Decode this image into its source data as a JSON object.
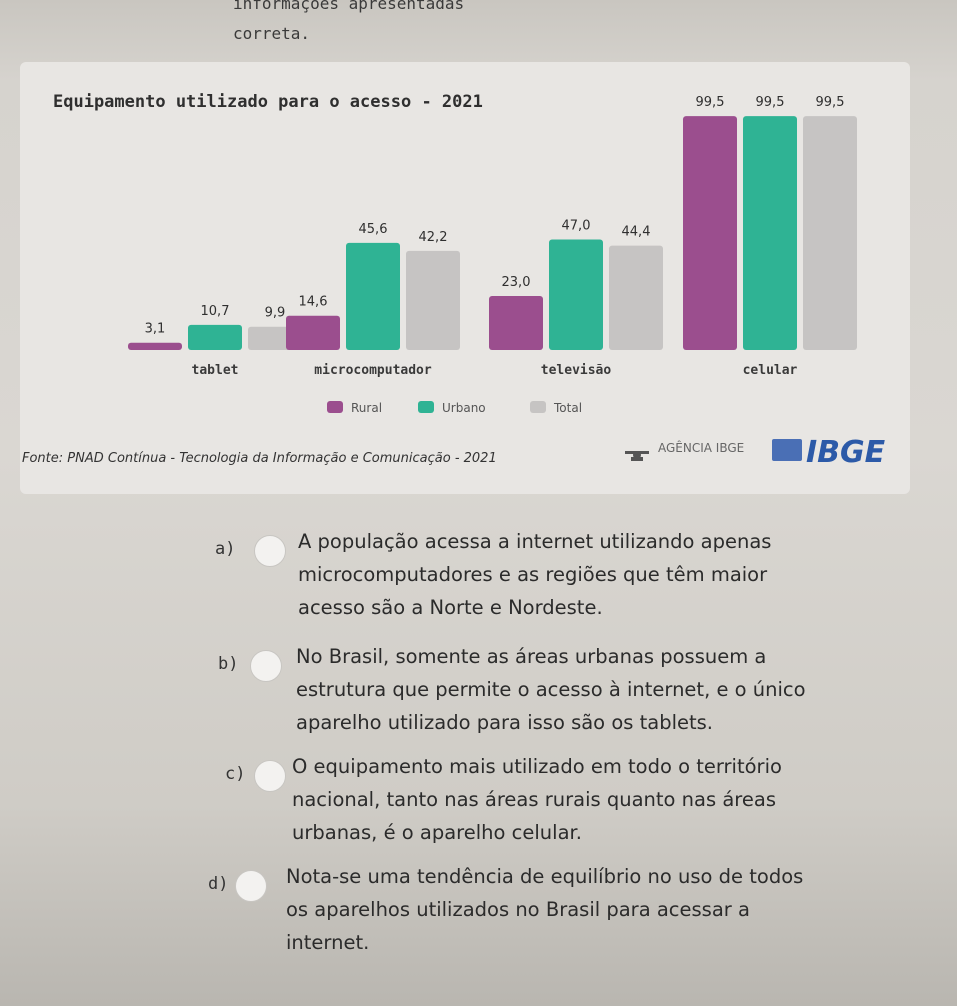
{
  "page": {
    "top_line_1": "informações apresentadas",
    "top_line_2": "correta."
  },
  "chart_data": {
    "type": "bar",
    "title": "Equipamento utilizado para o acesso - 2021",
    "categories": [
      "tablet",
      "microcomputador",
      "televisão",
      "celular"
    ],
    "series": [
      {
        "name": "Rural",
        "values": [
          3.1,
          14.6,
          23.0,
          99.5
        ],
        "labels": [
          "3,1",
          "14,6",
          "23,0",
          "99,5"
        ],
        "color": "#9b4e8e"
      },
      {
        "name": "Urbano",
        "values": [
          10.7,
          45.6,
          47.0,
          99.5
        ],
        "labels": [
          "10,7",
          "45,6",
          "47,0",
          "99,5"
        ],
        "color": "#2fb394"
      },
      {
        "name": "Total",
        "values": [
          9.9,
          42.2,
          44.4,
          99.5
        ],
        "labels": [
          "9,9",
          "42,2",
          "44,4",
          "99,5"
        ],
        "color": "#c6c4c3"
      }
    ],
    "legend_position": "bottom-center",
    "grid": false,
    "source": "Fonte: PNAD Contínua - Tecnologia da Informação e Comunicação - 2021",
    "agency_label": "AGÊNCIA IBGE",
    "brand": "IBGE"
  },
  "options": [
    {
      "letter": "a)",
      "lines": [
        "A população acessa a internet utilizando apenas",
        "microcomputadores e as regiões que têm maior",
        "acesso são a Norte e Nordeste."
      ]
    },
    {
      "letter": "b)",
      "lines": [
        "No Brasil, somente as áreas urbanas possuem a",
        "estrutura que permite o acesso à internet, e o único",
        "aparelho utilizado para isso são os tablets."
      ]
    },
    {
      "letter": "c)",
      "lines": [
        "O equipamento mais utilizado em todo o território",
        "nacional, tanto nas áreas rurais quanto nas áreas",
        "urbanas, é o aparelho celular."
      ]
    },
    {
      "letter": "d)",
      "lines": [
        "Nota-se uma tendência de equilíbrio no uso de todos",
        "os aparelhos utilizados no Brasil para acessar a",
        "internet."
      ]
    }
  ]
}
